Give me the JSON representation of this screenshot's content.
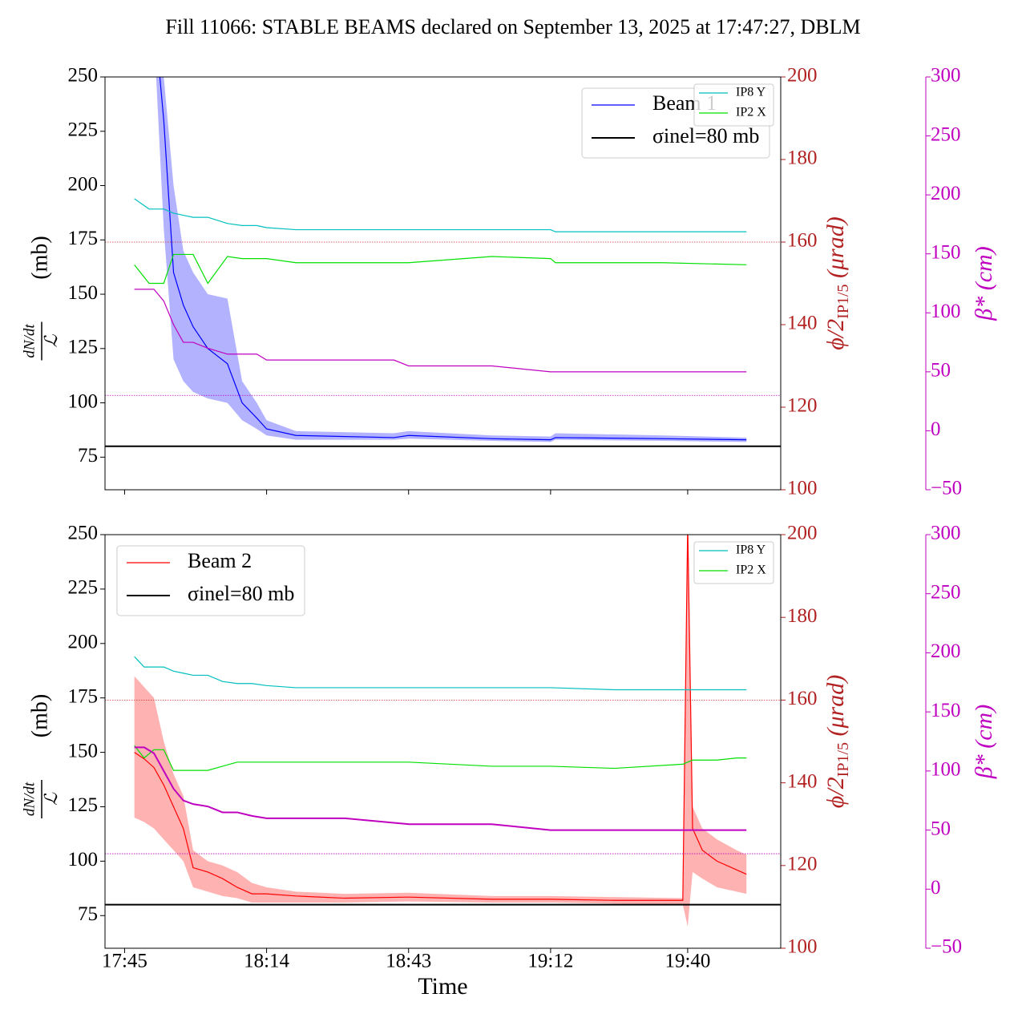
{
  "title": "Fill 11066: STABLE BEAMS declared on September 13, 2025 at 17:47:27, DBLM",
  "chart_data": [
    {
      "type": "line",
      "ylabel_num": "dN/dt",
      "ylabel_den": "ℒ",
      "ylabel_unit": "(mb)",
      "y2label": [
        "ϕ/2",
        "IP1/5",
        " (μrad)"
      ],
      "y3label": "β* (cm)",
      "x": [
        "17:47",
        "17:50",
        "17:51",
        "17:53",
        "17:55",
        "17:57",
        "17:59",
        "18:02",
        "18:06",
        "18:09",
        "18:12",
        "18:14",
        "18:20",
        "18:40",
        "18:43",
        "19:00",
        "19:12",
        "19:13",
        "19:35",
        "19:52"
      ],
      "xlim": [
        "17:41",
        "19:59"
      ],
      "xticks": [
        "17:45",
        "18:14",
        "18:43",
        "19:12",
        "19:40"
      ],
      "xtick_labels": false,
      "ylim": [
        60,
        250
      ],
      "yticks": [
        75,
        100,
        125,
        150,
        175,
        200,
        225,
        250
      ],
      "y2lim": [
        100,
        200
      ],
      "y2ticks": [
        100,
        120,
        140,
        160,
        180,
        200
      ],
      "y2color": "#b22222",
      "y3lim": [
        -50,
        300
      ],
      "y3ticks": [
        {
          "value": -50,
          "label": "−50"
        },
        0,
        50,
        100,
        150,
        200,
        250,
        300
      ],
      "y3color": "#c000c0",
      "legend_loc": "upper right",
      "ref_lines": [
        {
          "axis": "y2",
          "value": 160,
          "color": "#d03030"
        },
        {
          "axis": "y3",
          "value": 30,
          "color": "#c000c0"
        }
      ],
      "series": [
        {
          "name": "Beam 1",
          "color": "#0000ff",
          "legend": "main",
          "values": [
            null,
            null,
            280,
            230,
            160,
            145,
            135,
            125,
            118,
            100,
            93,
            88,
            85,
            84,
            85,
            83.5,
            83,
            84,
            83.5,
            83
          ],
          "lower": [
            null,
            null,
            270,
            180,
            120,
            110,
            105,
            102,
            100,
            92,
            88,
            85,
            83,
            83,
            83.5,
            82.5,
            82,
            83,
            82.5,
            82
          ],
          "upper": [
            null,
            null,
            290,
            250,
            200,
            170,
            160,
            150,
            148,
            110,
            100,
            92,
            87,
            86,
            87,
            85,
            84.5,
            86,
            85,
            84
          ]
        },
        {
          "name": "σinel=80 mb",
          "color": "#000000",
          "legend": "main",
          "hline": 80
        },
        {
          "name": "IP8 Y",
          "color": "#00bfbf",
          "legend": "aux",
          "axis": "y2",
          "values": [
            170.5,
            168,
            168,
            168,
            167,
            166.5,
            166,
            166,
            164.5,
            164,
            164,
            163.5,
            163,
            163,
            163,
            163,
            163,
            162.5,
            162.5,
            162.5
          ]
        },
        {
          "name": "IP2 X",
          "color": "#00e000",
          "legend": "aux",
          "axis": "y2",
          "values": [
            154.5,
            150,
            150,
            150,
            157,
            157,
            157,
            150,
            156.5,
            156,
            156,
            156,
            155,
            155,
            155,
            156.5,
            156,
            155,
            155,
            154.5
          ]
        },
        {
          "color": "#c000c0",
          "axis": "y3",
          "values": [
            120,
            120,
            120,
            110,
            90,
            75,
            75,
            70,
            65,
            65,
            65,
            60,
            60,
            60,
            55,
            55,
            50,
            50,
            50,
            50
          ]
        }
      ]
    },
    {
      "type": "line",
      "ylabel_num": "dN/dt",
      "ylabel_den": "ℒ",
      "ylabel_unit": "(mb)",
      "y2label": [
        "ϕ/2",
        "IP1/5",
        " (μrad)"
      ],
      "y3label": "β* (cm)",
      "xlabel": "Time",
      "x": [
        "17:47",
        "17:49",
        "17:51",
        "17:53",
        "17:55",
        "17:57",
        "17:59",
        "18:02",
        "18:05",
        "18:08",
        "18:11",
        "18:14",
        "18:20",
        "18:30",
        "18:43",
        "19:00",
        "19:12",
        "19:25",
        "19:39",
        "19:40",
        "19:41",
        "19:43",
        "19:46",
        "19:50",
        "19:52"
      ],
      "xlim": [
        "17:41",
        "19:59"
      ],
      "xticks": [
        "17:45",
        "18:14",
        "18:43",
        "19:12",
        "19:40"
      ],
      "xtick_labels": true,
      "ylim": [
        60,
        250
      ],
      "yticks": [
        75,
        100,
        125,
        150,
        175,
        200,
        225,
        250
      ],
      "y2lim": [
        100,
        200
      ],
      "y2ticks": [
        100,
        120,
        140,
        160,
        180,
        200
      ],
      "y2color": "#b22222",
      "y3lim": [
        -50,
        300
      ],
      "y3ticks": [
        {
          "value": -50,
          "label": "−50"
        },
        0,
        50,
        100,
        150,
        200,
        250,
        300
      ],
      "y3color": "#c000c0",
      "legend_loc": "upper left",
      "ref_lines": [
        {
          "axis": "y2",
          "value": 160,
          "color": "#d03030"
        },
        {
          "axis": "y3",
          "value": 30,
          "color": "#c000c0"
        }
      ],
      "series": [
        {
          "name": "Beam 2",
          "color": "#ff0000",
          "legend": "main",
          "values": [
            150,
            147,
            143,
            135,
            125,
            115,
            97,
            95,
            92,
            88,
            85,
            85,
            84,
            83,
            83.5,
            82.5,
            82.5,
            82,
            82,
            255,
            115,
            105,
            100,
            96,
            94
          ],
          "lower": [
            120,
            118,
            115,
            110,
            105,
            100,
            88,
            86,
            84,
            83,
            81,
            81,
            81,
            81,
            81.5,
            81,
            81,
            80.5,
            80,
            70,
            95,
            92,
            88,
            86,
            85
          ],
          "upper": [
            185,
            180,
            175,
            155,
            140,
            130,
            105,
            100,
            98,
            95,
            90,
            88,
            86,
            85,
            85.5,
            84,
            84,
            83.5,
            83,
            255,
            125,
            115,
            110,
            105,
            103
          ]
        },
        {
          "name": "σinel=80 mb",
          "color": "#000000",
          "legend": "main",
          "hline": 80
        },
        {
          "name": "IP8 Y",
          "color": "#00bfbf",
          "legend": "aux",
          "axis": "y2",
          "values": [
            170.5,
            168,
            168,
            168,
            167,
            166.5,
            166,
            166,
            164.5,
            164,
            164,
            163.5,
            163,
            163,
            163,
            163,
            163,
            162.5,
            162.5,
            162.5,
            162.5,
            162.5,
            162.5,
            162.5,
            162.5
          ]
        },
        {
          "name": "IP2 X",
          "color": "#00e000",
          "legend": "aux",
          "axis": "y2",
          "values": [
            149,
            146,
            148,
            148,
            143,
            143,
            143,
            143,
            144,
            145,
            145,
            145,
            145,
            145,
            145,
            144,
            144,
            143.5,
            144.5,
            145,
            145.5,
            145.5,
            145.5,
            146,
            146
          ]
        },
        {
          "color": "#c000c0",
          "axis": "y3",
          "values": [
            120,
            120,
            115,
            100,
            85,
            75,
            72,
            70,
            65,
            65,
            62,
            60,
            60,
            60,
            55,
            55,
            50,
            50,
            50,
            50,
            50,
            50,
            50,
            50,
            50
          ]
        }
      ]
    }
  ]
}
